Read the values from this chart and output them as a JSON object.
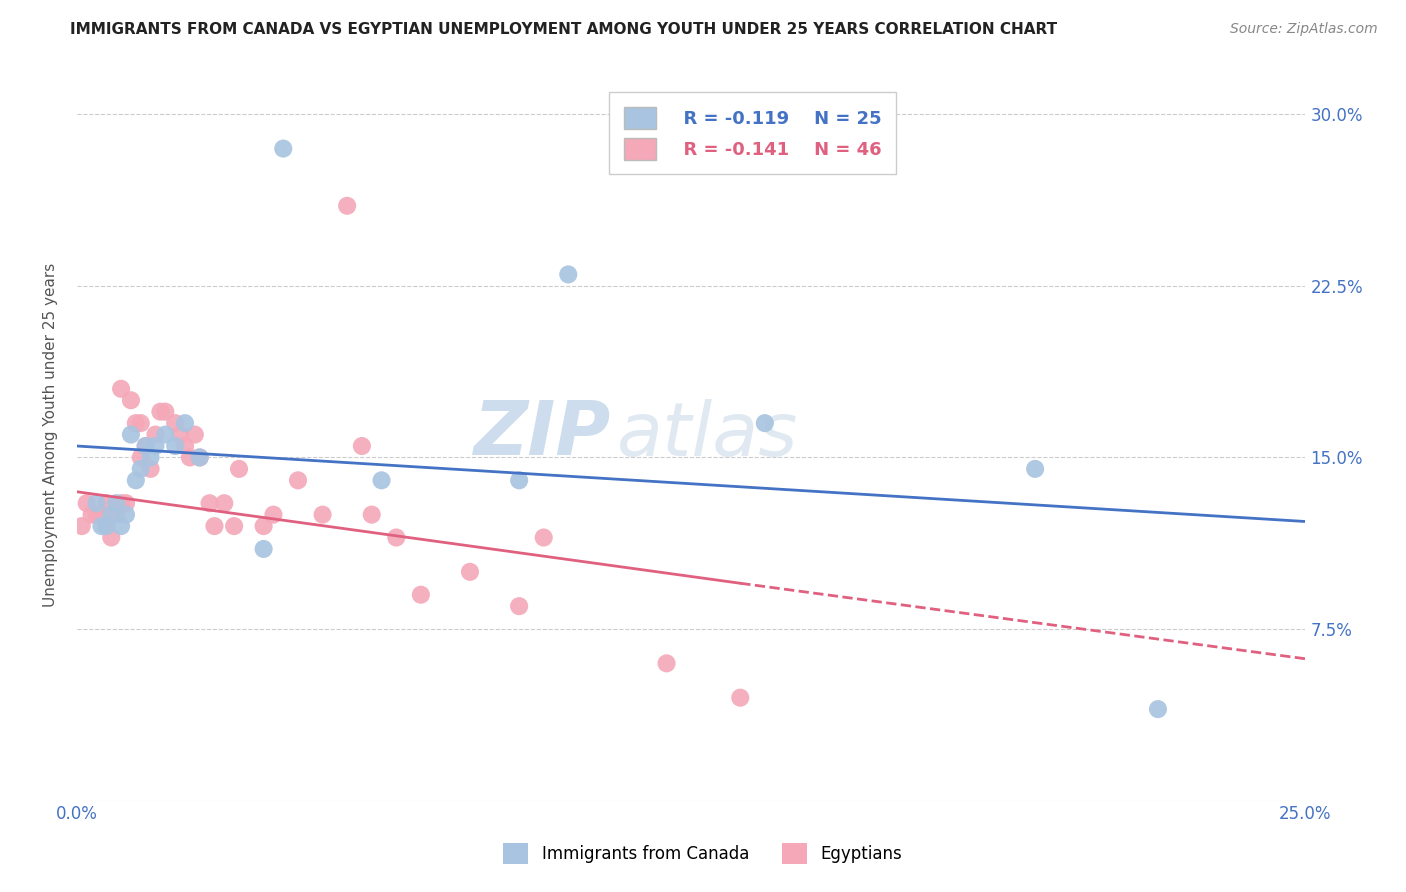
{
  "title": "IMMIGRANTS FROM CANADA VS EGYPTIAN UNEMPLOYMENT AMONG YOUTH UNDER 25 YEARS CORRELATION CHART",
  "source": "Source: ZipAtlas.com",
  "ylabel": "Unemployment Among Youth under 25 years",
  "xlim": [
    0.0,
    0.25
  ],
  "ylim": [
    0.0,
    0.32
  ],
  "legend_r_canada": "R = -0.119",
  "legend_n_canada": "N = 25",
  "legend_r_egypt": "R = -0.141",
  "legend_n_egypt": "N = 46",
  "canada_color": "#a8c4e0",
  "egypt_color": "#f4a8b8",
  "trendline_canada_color": "#4472c4",
  "trendline_egypt_color": "#e06080",
  "watermark_zip": "ZIP",
  "watermark_atlas": "atlas",
  "canada_x": [
    0.004,
    0.005,
    0.006,
    0.007,
    0.008,
    0.009,
    0.01,
    0.011,
    0.012,
    0.013,
    0.014,
    0.015,
    0.016,
    0.018,
    0.02,
    0.022,
    0.025,
    0.038,
    0.042,
    0.062,
    0.09,
    0.1,
    0.14,
    0.195,
    0.22
  ],
  "canada_y": [
    0.13,
    0.12,
    0.12,
    0.125,
    0.13,
    0.12,
    0.125,
    0.16,
    0.14,
    0.145,
    0.155,
    0.15,
    0.155,
    0.16,
    0.155,
    0.165,
    0.15,
    0.11,
    0.285,
    0.14,
    0.14,
    0.23,
    0.165,
    0.145,
    0.04
  ],
  "egypt_x": [
    0.001,
    0.002,
    0.003,
    0.004,
    0.005,
    0.006,
    0.006,
    0.007,
    0.008,
    0.009,
    0.009,
    0.01,
    0.011,
    0.012,
    0.013,
    0.013,
    0.014,
    0.015,
    0.016,
    0.017,
    0.018,
    0.02,
    0.021,
    0.022,
    0.023,
    0.024,
    0.025,
    0.027,
    0.028,
    0.03,
    0.032,
    0.033,
    0.038,
    0.04,
    0.045,
    0.05,
    0.055,
    0.058,
    0.06,
    0.065,
    0.07,
    0.08,
    0.09,
    0.095,
    0.12,
    0.135
  ],
  "egypt_y": [
    0.12,
    0.13,
    0.125,
    0.125,
    0.125,
    0.13,
    0.12,
    0.115,
    0.125,
    0.13,
    0.18,
    0.13,
    0.175,
    0.165,
    0.15,
    0.165,
    0.155,
    0.145,
    0.16,
    0.17,
    0.17,
    0.165,
    0.16,
    0.155,
    0.15,
    0.16,
    0.15,
    0.13,
    0.12,
    0.13,
    0.12,
    0.145,
    0.12,
    0.125,
    0.14,
    0.125,
    0.26,
    0.155,
    0.125,
    0.115,
    0.09,
    0.1,
    0.085,
    0.115,
    0.06,
    0.045
  ],
  "trendline_canada_x0": 0.0,
  "trendline_canada_y0": 0.155,
  "trendline_canada_x1": 0.25,
  "trendline_canada_y1": 0.122,
  "trendline_egypt_solid_x0": 0.0,
  "trendline_egypt_solid_y0": 0.135,
  "trendline_egypt_x1": 0.135,
  "trendline_egypt_y1": 0.095,
  "trendline_egypt_dash_x1": 0.25,
  "trendline_egypt_dash_y1": 0.062
}
